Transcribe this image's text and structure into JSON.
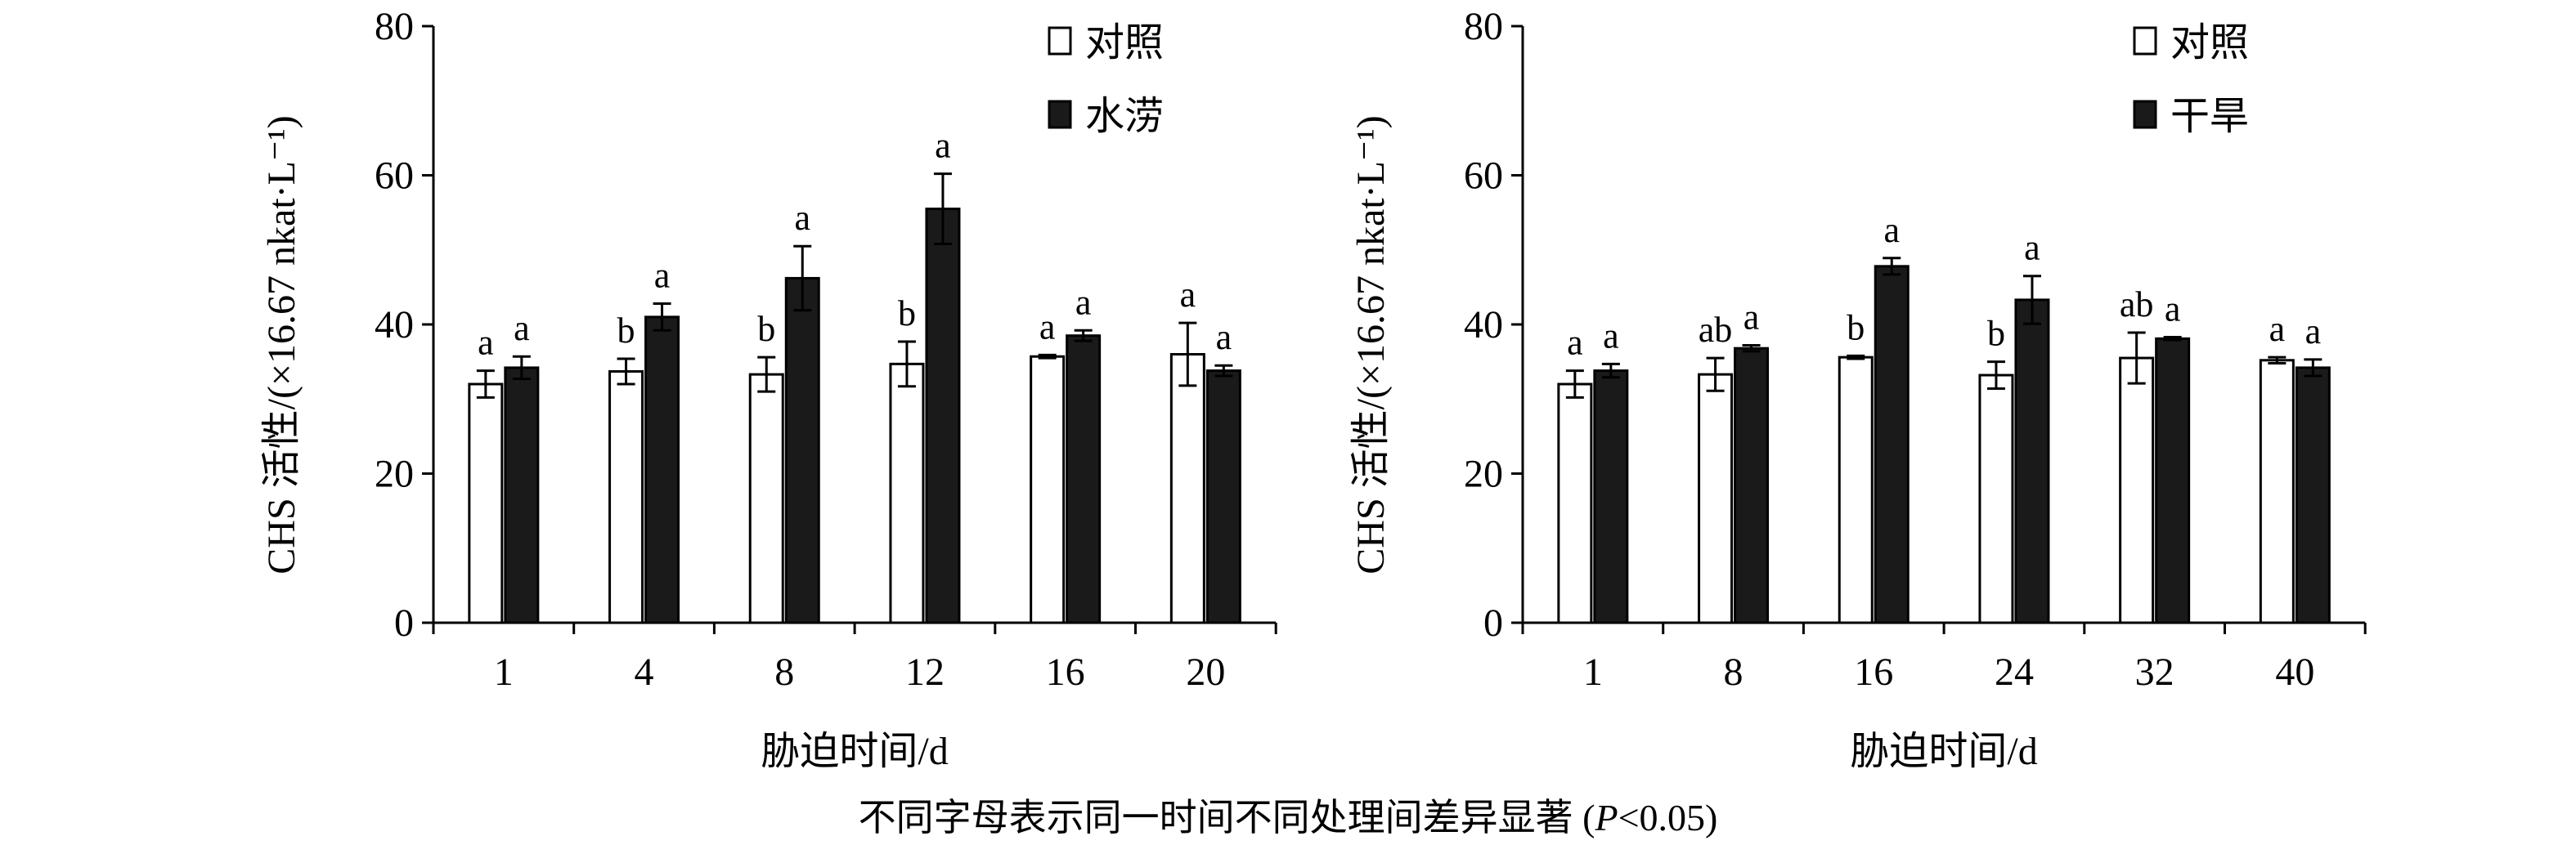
{
  "footnote": "不同字母表示同一时间不同处理间差异显著 (P<0.05)",
  "footnote_parts": {
    "pre": "不同字母表示同一时间不同处理间差异显著 (",
    "italic": "P",
    "post": "<0.05)"
  },
  "colors": {
    "control_fill": "#ffffff",
    "treatment_fill": "#1a1a1a",
    "stroke": "#000000"
  },
  "chart_data": [
    {
      "type": "bar",
      "xlabel": "胁迫时间/d",
      "ylabel": "CHS 活性/(×16.67 nkat·L⁻¹)",
      "ylim": [
        0,
        80
      ],
      "yticks": [
        0,
        20,
        40,
        60,
        80
      ],
      "legend_placement": "top-right",
      "categories": [
        "1",
        "4",
        "8",
        "12",
        "16",
        "20"
      ],
      "series": [
        {
          "name": "对照",
          "values": [
            32,
            33.7,
            33.3,
            34.7,
            35.7,
            36
          ],
          "errors": [
            1.8,
            1.7,
            2.3,
            3,
            0.2,
            4.2
          ],
          "letters": [
            "a",
            "b",
            "b",
            "b",
            "a",
            "a"
          ]
        },
        {
          "name": "水涝",
          "values": [
            34.2,
            41,
            46.2,
            55.5,
            38.5,
            33.8
          ],
          "errors": [
            1.5,
            1.8,
            4.3,
            4.7,
            0.7,
            0.7
          ],
          "letters": [
            "a",
            "a",
            "a",
            "a",
            "a",
            "a"
          ]
        }
      ]
    },
    {
      "type": "bar",
      "xlabel": "胁迫时间/d",
      "ylabel": "CHS 活性/(×16.67 nkat·L⁻¹)",
      "ylim": [
        0,
        80
      ],
      "yticks": [
        0,
        20,
        40,
        60,
        80
      ],
      "legend_placement": "top-right",
      "categories": [
        "1",
        "8",
        "16",
        "24",
        "32",
        "40"
      ],
      "series": [
        {
          "name": "对照",
          "values": [
            32,
            33.3,
            35.6,
            33.2,
            35.5,
            35.2
          ],
          "errors": [
            1.8,
            2.2,
            0.2,
            1.8,
            3.4,
            0.4
          ],
          "letters": [
            "a",
            "ab",
            "b",
            "b",
            "ab",
            "a"
          ]
        },
        {
          "name": "干旱",
          "values": [
            33.8,
            36.8,
            47.8,
            43.3,
            38.1,
            34.2
          ],
          "errors": [
            0.9,
            0.4,
            1.1,
            3.2,
            0.2,
            1.1
          ],
          "letters": [
            "a",
            "a",
            "a",
            "a",
            "a",
            "a"
          ]
        }
      ]
    }
  ]
}
